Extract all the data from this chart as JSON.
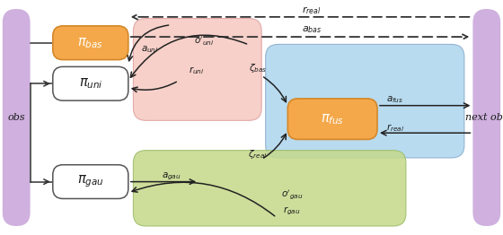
{
  "fig_width": 5.6,
  "fig_height": 2.62,
  "dpi": 100,
  "bg_color": "#ffffff",
  "obs_color": "#cfb0de",
  "pi_bas_color": "#f4a84a",
  "pi_bas_edge": "#d4882a",
  "pi_fus_color": "#f4a84a",
  "pi_uni_color": "#ffffff",
  "pi_gau_color": "#ffffff",
  "pi_node_edge": "#555555",
  "pink_region_color": "#f5c8c0",
  "pink_region_edge": "#e0a0a0",
  "green_region_color": "#c5d98a",
  "green_region_edge": "#99bb66",
  "blue_region_color": "#acd5ee",
  "blue_region_edge": "#88aacc",
  "text_color": "#1a1a1a",
  "arrow_color": "#222222",
  "dashed_color": "#333333",
  "xlim": [
    0,
    10
  ],
  "ylim": [
    0,
    4.72
  ]
}
